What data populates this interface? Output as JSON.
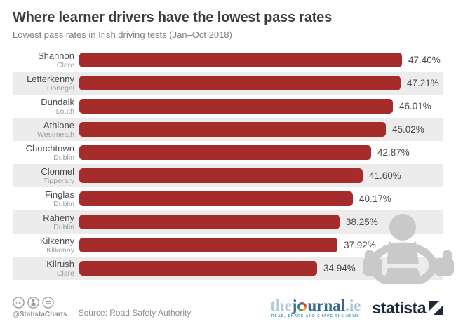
{
  "header": {
    "title": "Where learner drivers have the lowest pass rates",
    "subtitle": "Lowest pass rates in Irish driving tests (Jan–Oct 2018)"
  },
  "chart_data": {
    "type": "bar",
    "orientation": "horizontal",
    "title": "Where learner drivers have the lowest pass rates",
    "subtitle": "Lowest pass rates in Irish driving tests (Jan–Oct 2018)",
    "unit": "%",
    "axis_max": 47.4,
    "bar_color": "#a62b2b",
    "stripe_color": "#ececec",
    "legend": "none",
    "rows": [
      {
        "town": "Shannon",
        "county": "Clare",
        "value": 47.4,
        "label": "47.40%"
      },
      {
        "town": "Letterkenny",
        "county": "Donegal",
        "value": 47.21,
        "label": "47.21%"
      },
      {
        "town": "Dundalk",
        "county": "Louth",
        "value": 46.01,
        "label": "46.01%"
      },
      {
        "town": "Athlone",
        "county": "Westmeath",
        "value": 45.02,
        "label": "45.02%"
      },
      {
        "town": "Churchtown",
        "county": "Dublin",
        "value": 42.87,
        "label": "42.87%"
      },
      {
        "town": "Clonmel",
        "county": "Tipperary",
        "value": 41.6,
        "label": "41.60%"
      },
      {
        "town": "Finglas",
        "county": "Dublin",
        "value": 40.17,
        "label": "40.17%"
      },
      {
        "town": "Raheny",
        "county": "Dublin",
        "value": 38.25,
        "label": "38.25%"
      },
      {
        "town": "Kilkenny",
        "county": "Kilkenny",
        "value": 37.92,
        "label": "37.92%"
      },
      {
        "town": "Kilrush",
        "county": "Clare",
        "value": 34.94,
        "label": "34.94%"
      }
    ]
  },
  "footer": {
    "handle": "@StatistaCharts",
    "source": "Source: Road Safety Authority",
    "journal": {
      "the": "the",
      "j": "j",
      "rest": "urnal",
      "tld": ".ie",
      "tagline": "READ, SHARE AND SHAPE THE NEWS"
    },
    "statista_label": "statista"
  },
  "decoration": {
    "driver_icon": "driver-with-steering-wheel-thumbs-up",
    "icon_color": "#c9c9c9"
  }
}
